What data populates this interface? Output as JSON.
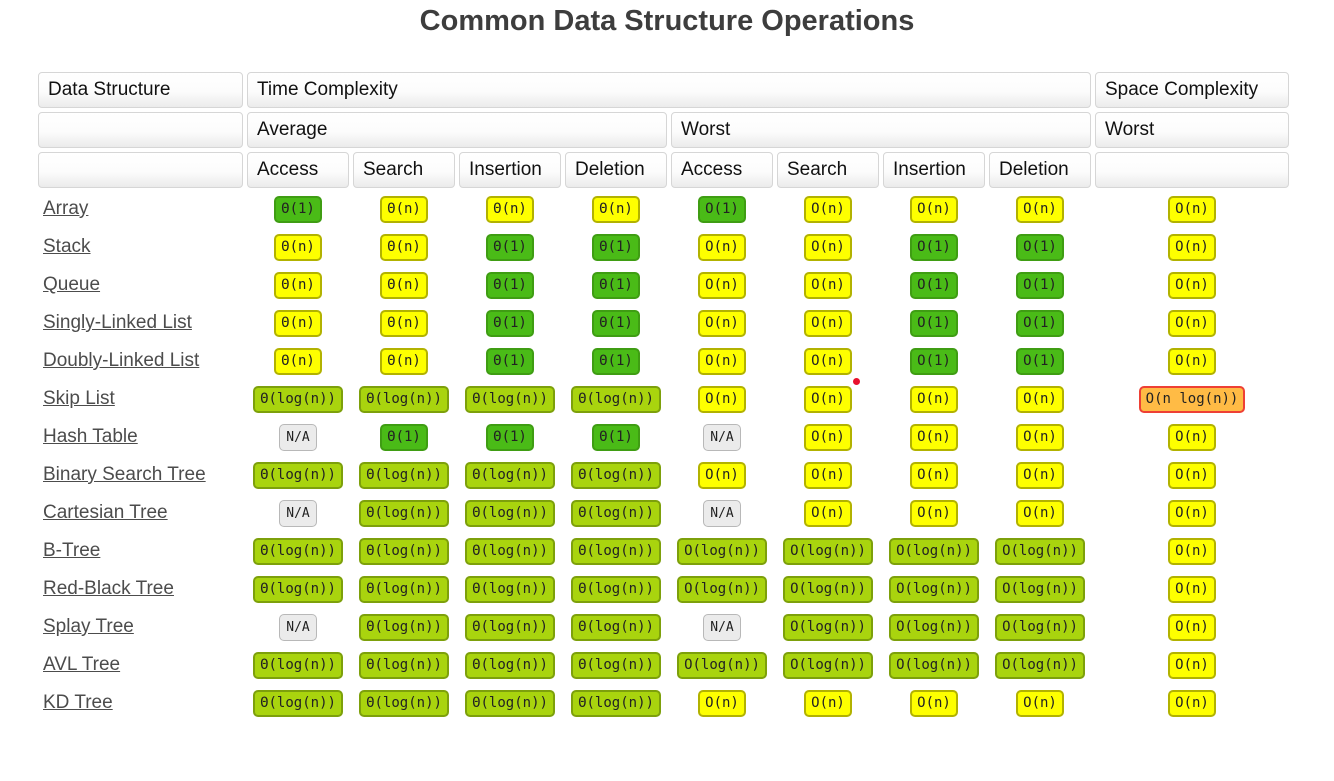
{
  "title": "Common Data Structure Operations",
  "marker_dot": {
    "color": "#e8112d"
  },
  "colors": {
    "green": {
      "bg": "#4abb17",
      "border": "#3f9d13"
    },
    "yellowgreen": {
      "bg": "#a9d40e",
      "border": "#7da00b"
    },
    "yellow": {
      "bg": "#feff00",
      "border": "#b2b200"
    },
    "orange": {
      "bg": "#ffbb45",
      "border": "#ee4035"
    },
    "na": {
      "bg": "#ebebeb",
      "border": "#b8b8b8"
    }
  },
  "table": {
    "header": {
      "data_structure": "Data Structure",
      "time_complexity": "Time Complexity",
      "space_complexity": "Space Complexity",
      "average": "Average",
      "worst_time": "Worst",
      "worst_space": "Worst",
      "ops": [
        "Access",
        "Search",
        "Insertion",
        "Deletion"
      ]
    },
    "rows": [
      {
        "name": "Array",
        "cells": [
          {
            "t": "Θ(1)",
            "c": "green"
          },
          {
            "t": "Θ(n)",
            "c": "yellow"
          },
          {
            "t": "Θ(n)",
            "c": "yellow"
          },
          {
            "t": "Θ(n)",
            "c": "yellow"
          },
          {
            "t": "O(1)",
            "c": "green"
          },
          {
            "t": "O(n)",
            "c": "yellow"
          },
          {
            "t": "O(n)",
            "c": "yellow"
          },
          {
            "t": "O(n)",
            "c": "yellow"
          },
          {
            "t": "O(n)",
            "c": "yellow"
          }
        ]
      },
      {
        "name": "Stack",
        "cells": [
          {
            "t": "Θ(n)",
            "c": "yellow"
          },
          {
            "t": "Θ(n)",
            "c": "yellow"
          },
          {
            "t": "Θ(1)",
            "c": "green"
          },
          {
            "t": "Θ(1)",
            "c": "green"
          },
          {
            "t": "O(n)",
            "c": "yellow"
          },
          {
            "t": "O(n)",
            "c": "yellow"
          },
          {
            "t": "O(1)",
            "c": "green"
          },
          {
            "t": "O(1)",
            "c": "green"
          },
          {
            "t": "O(n)",
            "c": "yellow"
          }
        ]
      },
      {
        "name": "Queue",
        "cells": [
          {
            "t": "Θ(n)",
            "c": "yellow"
          },
          {
            "t": "Θ(n)",
            "c": "yellow"
          },
          {
            "t": "Θ(1)",
            "c": "green"
          },
          {
            "t": "Θ(1)",
            "c": "green"
          },
          {
            "t": "O(n)",
            "c": "yellow"
          },
          {
            "t": "O(n)",
            "c": "yellow"
          },
          {
            "t": "O(1)",
            "c": "green"
          },
          {
            "t": "O(1)",
            "c": "green"
          },
          {
            "t": "O(n)",
            "c": "yellow"
          }
        ]
      },
      {
        "name": "Singly-Linked List",
        "cells": [
          {
            "t": "Θ(n)",
            "c": "yellow"
          },
          {
            "t": "Θ(n)",
            "c": "yellow"
          },
          {
            "t": "Θ(1)",
            "c": "green"
          },
          {
            "t": "Θ(1)",
            "c": "green"
          },
          {
            "t": "O(n)",
            "c": "yellow"
          },
          {
            "t": "O(n)",
            "c": "yellow"
          },
          {
            "t": "O(1)",
            "c": "green"
          },
          {
            "t": "O(1)",
            "c": "green"
          },
          {
            "t": "O(n)",
            "c": "yellow"
          }
        ]
      },
      {
        "name": "Doubly-Linked List",
        "cells": [
          {
            "t": "Θ(n)",
            "c": "yellow"
          },
          {
            "t": "Θ(n)",
            "c": "yellow"
          },
          {
            "t": "Θ(1)",
            "c": "green"
          },
          {
            "t": "Θ(1)",
            "c": "green"
          },
          {
            "t": "O(n)",
            "c": "yellow"
          },
          {
            "t": "O(n)",
            "c": "yellow"
          },
          {
            "t": "O(1)",
            "c": "green"
          },
          {
            "t": "O(1)",
            "c": "green"
          },
          {
            "t": "O(n)",
            "c": "yellow"
          }
        ]
      },
      {
        "name": "Skip List",
        "cells": [
          {
            "t": "Θ(log(n))",
            "c": "yellowgreen"
          },
          {
            "t": "Θ(log(n))",
            "c": "yellowgreen"
          },
          {
            "t": "Θ(log(n))",
            "c": "yellowgreen"
          },
          {
            "t": "Θ(log(n))",
            "c": "yellowgreen"
          },
          {
            "t": "O(n)",
            "c": "yellow"
          },
          {
            "t": "O(n)",
            "c": "yellow"
          },
          {
            "t": "O(n)",
            "c": "yellow"
          },
          {
            "t": "O(n)",
            "c": "yellow"
          },
          {
            "t": "O(n log(n))",
            "c": "orange"
          }
        ]
      },
      {
        "name": "Hash Table",
        "cells": [
          {
            "t": "N/A",
            "c": "na"
          },
          {
            "t": "Θ(1)",
            "c": "green"
          },
          {
            "t": "Θ(1)",
            "c": "green"
          },
          {
            "t": "Θ(1)",
            "c": "green"
          },
          {
            "t": "N/A",
            "c": "na"
          },
          {
            "t": "O(n)",
            "c": "yellow"
          },
          {
            "t": "O(n)",
            "c": "yellow"
          },
          {
            "t": "O(n)",
            "c": "yellow"
          },
          {
            "t": "O(n)",
            "c": "yellow"
          }
        ]
      },
      {
        "name": "Binary Search Tree",
        "cells": [
          {
            "t": "Θ(log(n))",
            "c": "yellowgreen"
          },
          {
            "t": "Θ(log(n))",
            "c": "yellowgreen"
          },
          {
            "t": "Θ(log(n))",
            "c": "yellowgreen"
          },
          {
            "t": "Θ(log(n))",
            "c": "yellowgreen"
          },
          {
            "t": "O(n)",
            "c": "yellow"
          },
          {
            "t": "O(n)",
            "c": "yellow"
          },
          {
            "t": "O(n)",
            "c": "yellow"
          },
          {
            "t": "O(n)",
            "c": "yellow"
          },
          {
            "t": "O(n)",
            "c": "yellow"
          }
        ]
      },
      {
        "name": "Cartesian Tree",
        "cells": [
          {
            "t": "N/A",
            "c": "na"
          },
          {
            "t": "Θ(log(n))",
            "c": "yellowgreen"
          },
          {
            "t": "Θ(log(n))",
            "c": "yellowgreen"
          },
          {
            "t": "Θ(log(n))",
            "c": "yellowgreen"
          },
          {
            "t": "N/A",
            "c": "na"
          },
          {
            "t": "O(n)",
            "c": "yellow"
          },
          {
            "t": "O(n)",
            "c": "yellow"
          },
          {
            "t": "O(n)",
            "c": "yellow"
          },
          {
            "t": "O(n)",
            "c": "yellow"
          }
        ]
      },
      {
        "name": "B-Tree",
        "cells": [
          {
            "t": "Θ(log(n))",
            "c": "yellowgreen"
          },
          {
            "t": "Θ(log(n))",
            "c": "yellowgreen"
          },
          {
            "t": "Θ(log(n))",
            "c": "yellowgreen"
          },
          {
            "t": "Θ(log(n))",
            "c": "yellowgreen"
          },
          {
            "t": "O(log(n))",
            "c": "yellowgreen"
          },
          {
            "t": "O(log(n))",
            "c": "yellowgreen"
          },
          {
            "t": "O(log(n))",
            "c": "yellowgreen"
          },
          {
            "t": "O(log(n))",
            "c": "yellowgreen"
          },
          {
            "t": "O(n)",
            "c": "yellow"
          }
        ]
      },
      {
        "name": "Red-Black Tree",
        "cells": [
          {
            "t": "Θ(log(n))",
            "c": "yellowgreen"
          },
          {
            "t": "Θ(log(n))",
            "c": "yellowgreen"
          },
          {
            "t": "Θ(log(n))",
            "c": "yellowgreen"
          },
          {
            "t": "Θ(log(n))",
            "c": "yellowgreen"
          },
          {
            "t": "O(log(n))",
            "c": "yellowgreen"
          },
          {
            "t": "O(log(n))",
            "c": "yellowgreen"
          },
          {
            "t": "O(log(n))",
            "c": "yellowgreen"
          },
          {
            "t": "O(log(n))",
            "c": "yellowgreen"
          },
          {
            "t": "O(n)",
            "c": "yellow"
          }
        ]
      },
      {
        "name": "Splay Tree",
        "cells": [
          {
            "t": "N/A",
            "c": "na"
          },
          {
            "t": "Θ(log(n))",
            "c": "yellowgreen"
          },
          {
            "t": "Θ(log(n))",
            "c": "yellowgreen"
          },
          {
            "t": "Θ(log(n))",
            "c": "yellowgreen"
          },
          {
            "t": "N/A",
            "c": "na"
          },
          {
            "t": "O(log(n))",
            "c": "yellowgreen"
          },
          {
            "t": "O(log(n))",
            "c": "yellowgreen"
          },
          {
            "t": "O(log(n))",
            "c": "yellowgreen"
          },
          {
            "t": "O(n)",
            "c": "yellow"
          }
        ]
      },
      {
        "name": "AVL Tree",
        "cells": [
          {
            "t": "Θ(log(n))",
            "c": "yellowgreen"
          },
          {
            "t": "Θ(log(n))",
            "c": "yellowgreen"
          },
          {
            "t": "Θ(log(n))",
            "c": "yellowgreen"
          },
          {
            "t": "Θ(log(n))",
            "c": "yellowgreen"
          },
          {
            "t": "O(log(n))",
            "c": "yellowgreen"
          },
          {
            "t": "O(log(n))",
            "c": "yellowgreen"
          },
          {
            "t": "O(log(n))",
            "c": "yellowgreen"
          },
          {
            "t": "O(log(n))",
            "c": "yellowgreen"
          },
          {
            "t": "O(n)",
            "c": "yellow"
          }
        ]
      },
      {
        "name": "KD Tree",
        "cells": [
          {
            "t": "Θ(log(n))",
            "c": "yellowgreen"
          },
          {
            "t": "Θ(log(n))",
            "c": "yellowgreen"
          },
          {
            "t": "Θ(log(n))",
            "c": "yellowgreen"
          },
          {
            "t": "Θ(log(n))",
            "c": "yellowgreen"
          },
          {
            "t": "O(n)",
            "c": "yellow"
          },
          {
            "t": "O(n)",
            "c": "yellow"
          },
          {
            "t": "O(n)",
            "c": "yellow"
          },
          {
            "t": "O(n)",
            "c": "yellow"
          },
          {
            "t": "O(n)",
            "c": "yellow"
          }
        ]
      }
    ]
  }
}
